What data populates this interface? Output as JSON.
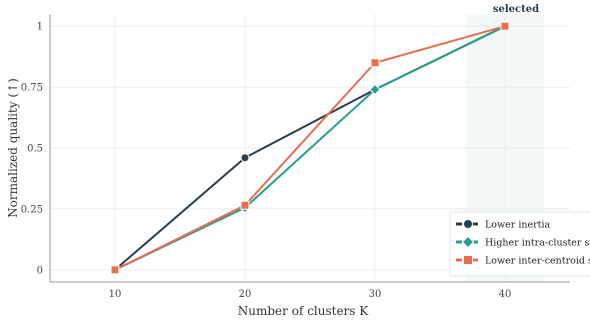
{
  "chart_data": {
    "type": "line",
    "xlabel": "Number of clusters K",
    "ylabel": "Normalized quality (↑)",
    "x": [
      10,
      20,
      30,
      40
    ],
    "xticks": [
      10,
      20,
      30,
      40
    ],
    "yticks": [
      0,
      0.25,
      0.5,
      0.75,
      1
    ],
    "ytick_labels": [
      "0",
      "0.25",
      "0.5",
      "0.75",
      "1"
    ],
    "xlim": [
      5,
      45
    ],
    "ylim": [
      -0.05,
      1.05
    ],
    "grid": true,
    "legend_position": "bottom-right",
    "highlight": {
      "x_from": 37,
      "x_to": 43,
      "label": "selected"
    },
    "series": [
      {
        "name": "Lower inertia",
        "values": [
          0,
          0.46,
          0.74,
          1.0
        ],
        "color": "#263f52",
        "marker": "circle"
      },
      {
        "name": "Higher intra-cluster sim",
        "values": [
          0,
          0.255,
          0.74,
          1.0
        ],
        "color": "#2a9d8f",
        "marker": "diamond"
      },
      {
        "name": "Lower inter-centroid sim",
        "values": [
          0,
          0.265,
          0.85,
          1.0
        ],
        "color": "#e76f51",
        "marker": "square"
      }
    ]
  }
}
